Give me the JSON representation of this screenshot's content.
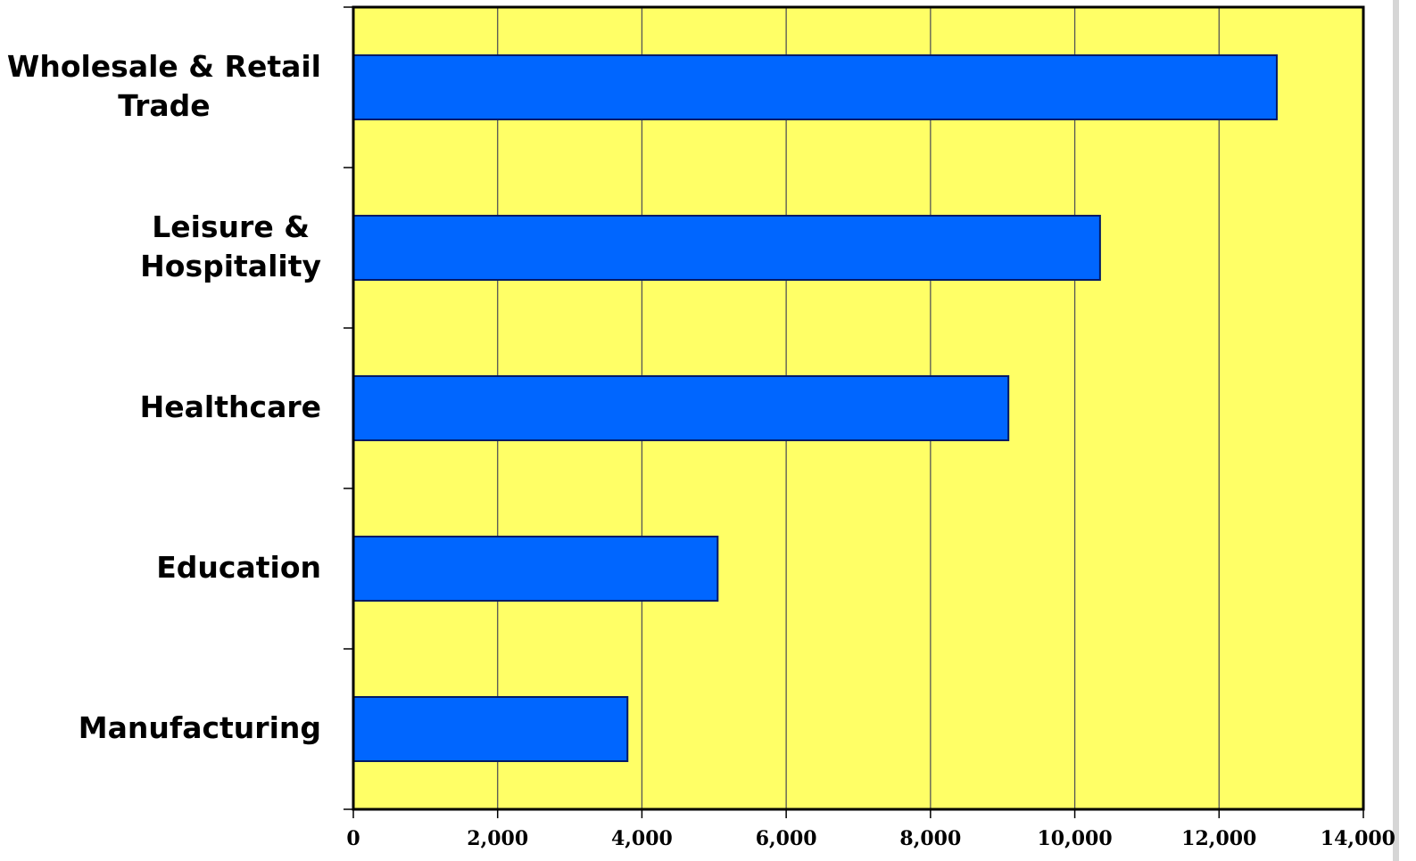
{
  "chart_data": {
    "type": "bar",
    "orientation": "horizontal",
    "title": "",
    "xlabel": "",
    "ylabel": "",
    "categories": [
      "Wholesale & Retail Trade",
      "Leisure & Hospitality",
      "Healthcare",
      "Education",
      "Manufacturing"
    ],
    "category_lines": [
      [
        "Wholesale & Retail",
        "Trade"
      ],
      [
        "Leisure &",
        "Hospitality"
      ],
      [
        "Healthcare"
      ],
      [
        "Education"
      ],
      [
        "Manufacturing"
      ]
    ],
    "values": [
      12800,
      10350,
      9080,
      5050,
      3800
    ],
    "xlim": [
      0,
      14000
    ],
    "xticks": [
      0,
      2000,
      4000,
      6000,
      8000,
      10000,
      12000,
      14000
    ],
    "xtick_labels": [
      "0",
      "2,000",
      "4,000",
      "6,000",
      "8,000",
      "10,000",
      "12,000",
      "14,000"
    ],
    "grid": "vertical",
    "legend": "none",
    "colors": {
      "plot_background": "#FFFF66",
      "bar_fill": "#0066FF",
      "bar_border": "#001A66",
      "grid": "#555555",
      "axis": "#000000"
    }
  }
}
